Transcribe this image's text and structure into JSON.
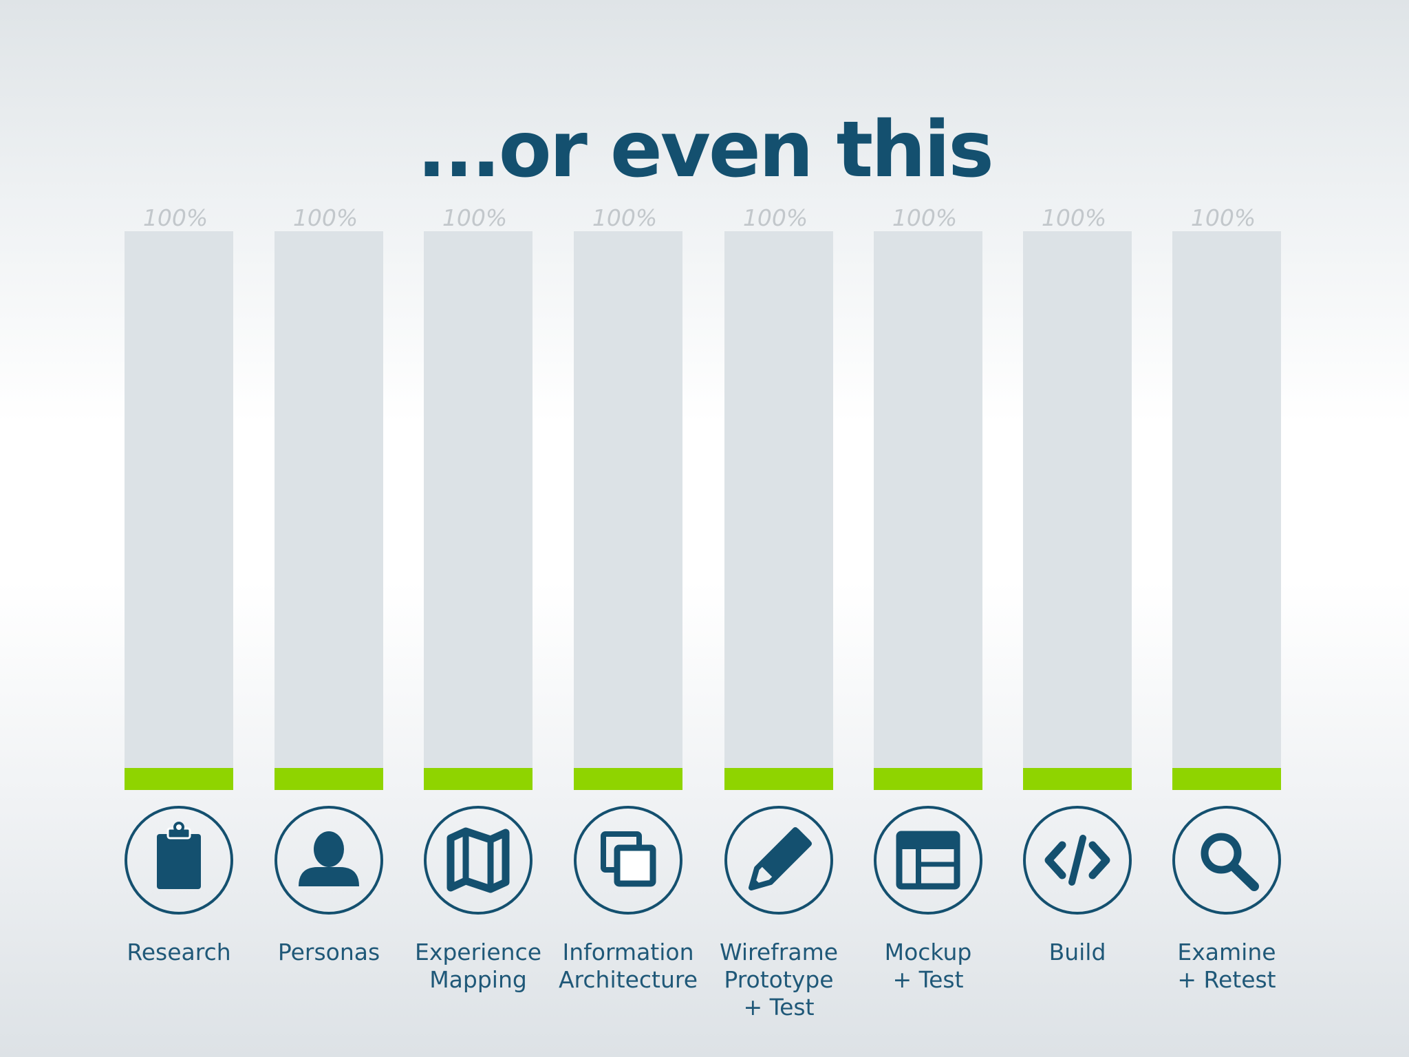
{
  "title": "...or even this",
  "colors": {
    "title": "#14506f",
    "bar_track": "#dce2e6",
    "bar_fill": "#8fd400",
    "icon": "#14506f",
    "value_label": "#c2c7cb",
    "stage_label": "#1f5878"
  },
  "chart_data": {
    "type": "bar",
    "title": "...or even this",
    "categories": [
      "Research",
      "Personas",
      "Experience\nMapping",
      "Information\nArchitecture",
      "Wireframe\nPrototype\n+ Test",
      "Mockup\n+ Test",
      "Build",
      "Examine\n+ Retest"
    ],
    "values": [
      4,
      4,
      4,
      4,
      4,
      4,
      4,
      4
    ],
    "value_labels": [
      "100%",
      "100%",
      "100%",
      "100%",
      "100%",
      "100%",
      "100%",
      "100%"
    ],
    "icons": [
      "clipboard-icon",
      "person-icon",
      "map-icon",
      "copy-icon",
      "pencil-icon",
      "layout-icon",
      "code-icon",
      "magnifier-icon"
    ],
    "ylim": [
      0,
      100
    ],
    "xlabel": "",
    "ylabel": "",
    "grid": false
  }
}
